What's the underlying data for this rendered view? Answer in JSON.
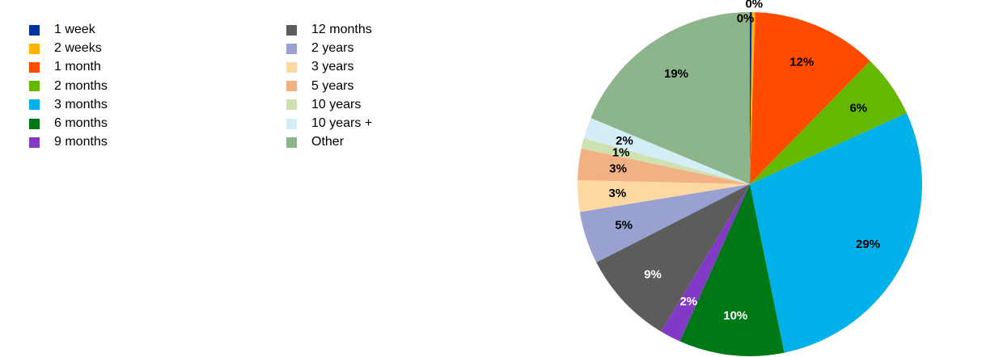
{
  "chart_data": {
    "type": "pie",
    "title": "",
    "legend_position": "top-left",
    "slices": [
      {
        "label": "1 week",
        "value": 0.2,
        "display": "0%",
        "color": "#0033a0",
        "label_color": "#000000"
      },
      {
        "label": "2 weeks",
        "value": 0.3,
        "display": "0%",
        "color": "#ffb400",
        "label_color": "#000000"
      },
      {
        "label": "1 month",
        "value": 12,
        "display": "12%",
        "color": "#ff4b00",
        "label_color": "#000000"
      },
      {
        "label": "2 months",
        "value": 6,
        "display": "6%",
        "color": "#65b800",
        "label_color": "#000000"
      },
      {
        "label": "3 months",
        "value": 29,
        "display": "29%",
        "color": "#00b1ea",
        "label_color": "#000000"
      },
      {
        "label": "6 months",
        "value": 10,
        "display": "10%",
        "color": "#007816",
        "label_color": "#ffffff"
      },
      {
        "label": "9 months",
        "value": 2,
        "display": "2%",
        "color": "#8139c6",
        "label_color": "#ffffff"
      },
      {
        "label": "12 months",
        "value": 9,
        "display": "9%",
        "color": "#5c5c5c",
        "label_color": "#ffffff"
      },
      {
        "label": "2 years",
        "value": 5,
        "display": "5%",
        "color": "#98a1d0",
        "label_color": "#000000"
      },
      {
        "label": "3 years",
        "value": 3,
        "display": "3%",
        "color": "#fdd8a2",
        "label_color": "#000000"
      },
      {
        "label": "5 years",
        "value": 3,
        "display": "3%",
        "color": "#f3b084",
        "label_color": "#000000"
      },
      {
        "label": "10 years",
        "value": 1,
        "display": "1%",
        "color": "#cee1b0",
        "label_color": "#000000"
      },
      {
        "label": "10 years +",
        "value": 2,
        "display": "2%",
        "color": "#d4eef8",
        "label_color": "#000000"
      },
      {
        "label": "Other",
        "value": 19,
        "display": "19%",
        "color": "#8db58c",
        "label_color": "#000000"
      }
    ]
  }
}
